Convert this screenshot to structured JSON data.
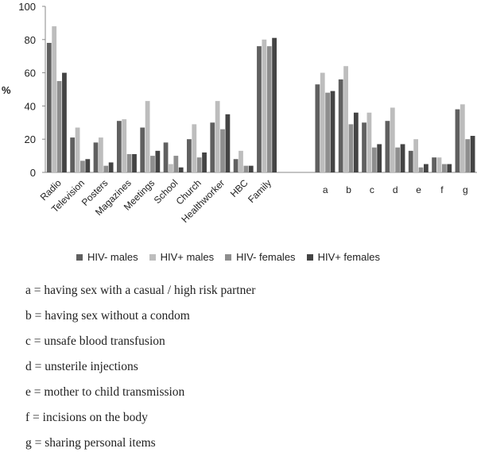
{
  "chart_data": {
    "type": "bar",
    "ylabel": "%",
    "ylim": [
      0,
      100
    ],
    "yticks": [
      "0",
      "20",
      "40",
      "60",
      "80",
      "100"
    ],
    "grid": false,
    "legend_position": "bottom",
    "categories": [
      "Radio",
      "Television",
      "Posters",
      "Magazines",
      "Meetings",
      "School",
      "Church",
      "Healthworker",
      "HBC",
      "Family",
      "a",
      "b",
      "c",
      "d",
      "e",
      "f",
      "g"
    ],
    "series": [
      {
        "name": "HIV- males",
        "color": "#606060",
        "values": [
          78,
          21,
          18,
          31,
          27,
          18,
          20,
          30,
          8,
          76,
          53,
          56,
          30,
          31,
          13,
          9,
          38
        ]
      },
      {
        "name": "HIV+ males",
        "color": "#bdbdbd",
        "values": [
          88,
          27,
          21,
          32,
          43,
          5,
          29,
          43,
          13,
          80,
          60,
          64,
          36,
          39,
          20,
          9,
          41
        ]
      },
      {
        "name": "HIV- females",
        "color": "#8e8e8e",
        "values": [
          55,
          7,
          4,
          11,
          10,
          10,
          9,
          26,
          4,
          76,
          48,
          29,
          15,
          15,
          3,
          5,
          20
        ]
      },
      {
        "name": "HIV+ females",
        "color": "#444444",
        "values": [
          60,
          8,
          6,
          11,
          13,
          3,
          12,
          35,
          4,
          81,
          49,
          36,
          17,
          17,
          5,
          5,
          22
        ]
      }
    ]
  },
  "footnotes": [
    "a = having sex with a casual / high risk partner",
    "b = having sex without a condom",
    "c = unsafe blood transfusion",
    "d = unsterile injections",
    "e = mother to child transmission",
    "f = incisions on the body",
    "g = sharing personal items"
  ]
}
